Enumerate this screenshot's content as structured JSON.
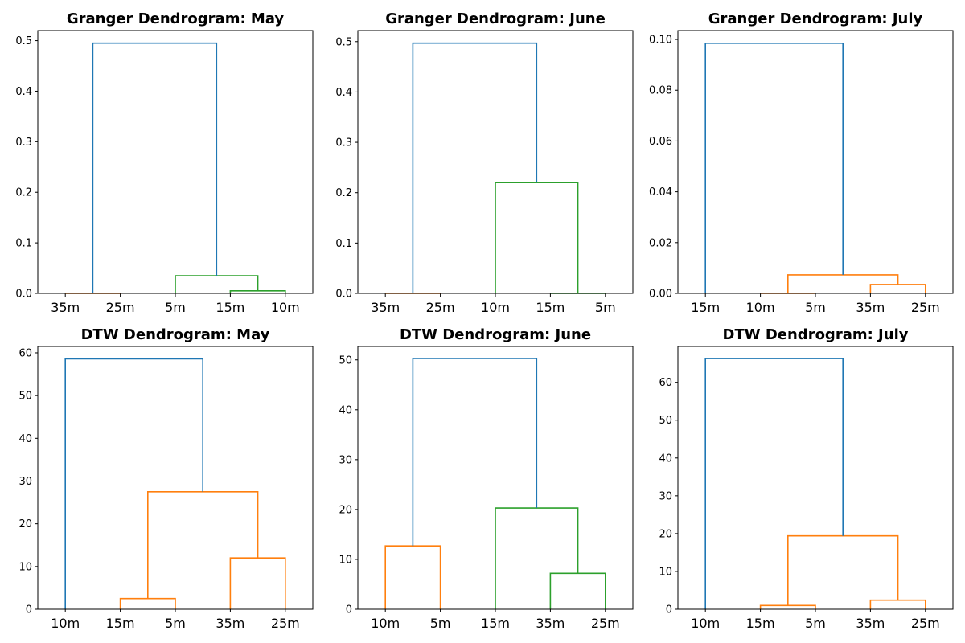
{
  "chart_data": [
    {
      "type": "dendrogram",
      "title": "Granger Dendrogram: May",
      "leaves": [
        "35m",
        "25m",
        "5m",
        "15m",
        "10m"
      ],
      "ylim": [
        0,
        0.52
      ],
      "yticks": [
        0.0,
        0.1,
        0.2,
        0.3,
        0.4,
        0.5
      ],
      "ytick_labels": [
        "0.0",
        "0.1",
        "0.2",
        "0.3",
        "0.4",
        "0.5"
      ],
      "links": [
        {
          "left": 0,
          "right": 1,
          "height": 0.0,
          "color": "#ff7f0e"
        },
        {
          "left": 3,
          "right": 4,
          "height": 0.005,
          "color": "#2ca02c"
        },
        {
          "left": 2,
          "right": 3.5,
          "height": 0.035,
          "color": "#2ca02c"
        },
        {
          "left": 0.5,
          "right": 2.75,
          "height": 0.495,
          "color": "#1f77b4"
        }
      ]
    },
    {
      "type": "dendrogram",
      "title": "Granger Dendrogram: June",
      "leaves": [
        "35m",
        "25m",
        "10m",
        "15m",
        "5m"
      ],
      "ylim": [
        0,
        0.522
      ],
      "yticks": [
        0.0,
        0.1,
        0.2,
        0.3,
        0.4,
        0.5
      ],
      "ytick_labels": [
        "0.0",
        "0.1",
        "0.2",
        "0.3",
        "0.4",
        "0.5"
      ],
      "links": [
        {
          "left": 0,
          "right": 1,
          "height": 0.0,
          "color": "#ff7f0e"
        },
        {
          "left": 3,
          "right": 4,
          "height": 0.0,
          "color": "#2ca02c"
        },
        {
          "left": 2,
          "right": 3.5,
          "height": 0.22,
          "color": "#2ca02c"
        },
        {
          "left": 0.5,
          "right": 2.75,
          "height": 0.497,
          "color": "#1f77b4"
        }
      ]
    },
    {
      "type": "dendrogram",
      "title": "Granger Dendrogram: July",
      "leaves": [
        "15m",
        "10m",
        "5m",
        "35m",
        "25m"
      ],
      "ylim": [
        0,
        0.1035
      ],
      "yticks": [
        0.0,
        0.02,
        0.04,
        0.06,
        0.08,
        0.1
      ],
      "ytick_labels": [
        "0.00",
        "0.02",
        "0.04",
        "0.06",
        "0.08",
        "0.10"
      ],
      "links": [
        {
          "left": 1,
          "right": 2,
          "height": 0.0,
          "color": "#ff7f0e"
        },
        {
          "left": 3,
          "right": 4,
          "height": 0.0035,
          "color": "#ff7f0e"
        },
        {
          "left": 1.5,
          "right": 3.5,
          "height": 0.0073,
          "color": "#ff7f0e"
        },
        {
          "left": 0,
          "right": 2.5,
          "height": 0.0985,
          "color": "#1f77b4"
        }
      ]
    },
    {
      "type": "dendrogram",
      "title": "DTW Dendrogram: May",
      "leaves": [
        "10m",
        "15m",
        "5m",
        "35m",
        "25m"
      ],
      "ylim": [
        0,
        61.5
      ],
      "yticks": [
        0,
        10,
        20,
        30,
        40,
        50,
        60
      ],
      "ytick_labels": [
        "0",
        "10",
        "20",
        "30",
        "40",
        "50",
        "60"
      ],
      "links": [
        {
          "left": 1,
          "right": 2,
          "height": 2.5,
          "color": "#ff7f0e"
        },
        {
          "left": 3,
          "right": 4,
          "height": 12.0,
          "color": "#ff7f0e"
        },
        {
          "left": 1.5,
          "right": 3.5,
          "height": 27.5,
          "color": "#ff7f0e"
        },
        {
          "left": 0,
          "right": 2.5,
          "height": 58.6,
          "color": "#1f77b4"
        }
      ]
    },
    {
      "type": "dendrogram",
      "title": "DTW Dendrogram: June",
      "leaves": [
        "10m",
        "5m",
        "15m",
        "35m",
        "25m"
      ],
      "ylim": [
        0,
        52.7
      ],
      "yticks": [
        0,
        10,
        20,
        30,
        40,
        50
      ],
      "ytick_labels": [
        "0",
        "10",
        "20",
        "30",
        "40",
        "50"
      ],
      "links": [
        {
          "left": 0,
          "right": 1,
          "height": 12.7,
          "color": "#ff7f0e"
        },
        {
          "left": 3,
          "right": 4,
          "height": 7.2,
          "color": "#2ca02c"
        },
        {
          "left": 2,
          "right": 3.5,
          "height": 20.3,
          "color": "#2ca02c"
        },
        {
          "left": 0.5,
          "right": 2.75,
          "height": 50.3,
          "color": "#1f77b4"
        }
      ]
    },
    {
      "type": "dendrogram",
      "title": "DTW Dendrogram: July",
      "leaves": [
        "10m",
        "15m",
        "5m",
        "35m",
        "25m"
      ],
      "ylim": [
        0,
        69.5
      ],
      "yticks": [
        0,
        10,
        20,
        30,
        40,
        50,
        60
      ],
      "ytick_labels": [
        "0",
        "10",
        "20",
        "30",
        "40",
        "50",
        "60"
      ],
      "links": [
        {
          "left": 1,
          "right": 2,
          "height": 1.0,
          "color": "#ff7f0e"
        },
        {
          "left": 3,
          "right": 4,
          "height": 2.4,
          "color": "#ff7f0e"
        },
        {
          "left": 1.5,
          "right": 3.5,
          "height": 19.4,
          "color": "#ff7f0e"
        },
        {
          "left": 0,
          "right": 2.5,
          "height": 66.3,
          "color": "#1f77b4"
        }
      ]
    }
  ]
}
